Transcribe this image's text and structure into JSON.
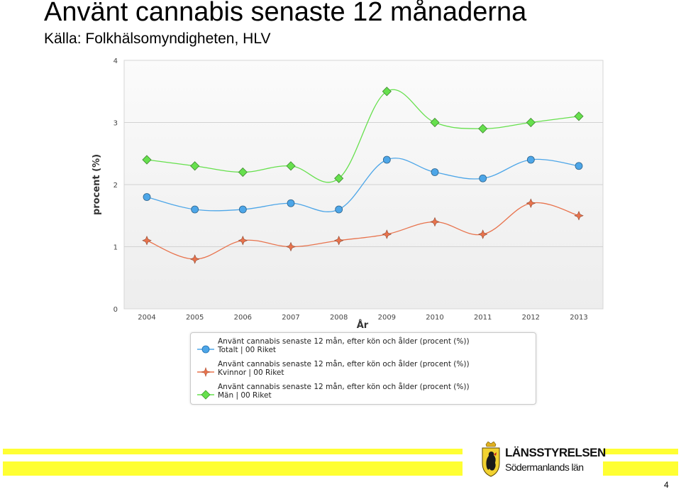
{
  "slide": {
    "title": "Använt cannabis senaste 12 månaderna",
    "subtitle": "Källa: Folkhälsomyndigheten, HLV",
    "page_number": "4"
  },
  "logo": {
    "name": "LÄNSSTYRELSEN",
    "sub": "Södermanlands län"
  },
  "chart_data": {
    "type": "line",
    "x": [
      "2004",
      "2005",
      "2006",
      "2007",
      "2008",
      "2009",
      "2010",
      "2011",
      "2012",
      "2013"
    ],
    "xlabel": "År",
    "ylabel": "procent (%)",
    "ylim": [
      0,
      4
    ],
    "yticks": [
      "0",
      "1",
      "2",
      "3",
      "4"
    ],
    "grid": true,
    "legend": "bottom",
    "series": [
      {
        "name": "Använt cannabis senaste 12 mån, efter kön och ålder (procent (%))",
        "name_line2": "Totalt  |  00 Riket",
        "color": "#4da6e8",
        "marker": "circle",
        "values": [
          1.8,
          1.6,
          1.6,
          1.7,
          1.6,
          2.4,
          2.2,
          2.1,
          2.4,
          2.3
        ]
      },
      {
        "name": "Använt cannabis senaste 12 mån, efter kön och ålder (procent (%))",
        "name_line2": "Kvinnor  |  00 Riket",
        "color": "#e8734d",
        "marker": "star",
        "values": [
          1.1,
          0.8,
          1.1,
          1.0,
          1.1,
          1.2,
          1.4,
          1.2,
          1.7,
          1.5
        ]
      },
      {
        "name": "Använt cannabis senaste 12 mån, efter kön och ålder (procent (%))",
        "name_line2": "Män  |  00 Riket",
        "color": "#66e04d",
        "marker": "diamond",
        "values": [
          2.4,
          2.3,
          2.2,
          2.3,
          2.1,
          3.5,
          3.0,
          2.9,
          3.0,
          3.1
        ]
      }
    ]
  }
}
